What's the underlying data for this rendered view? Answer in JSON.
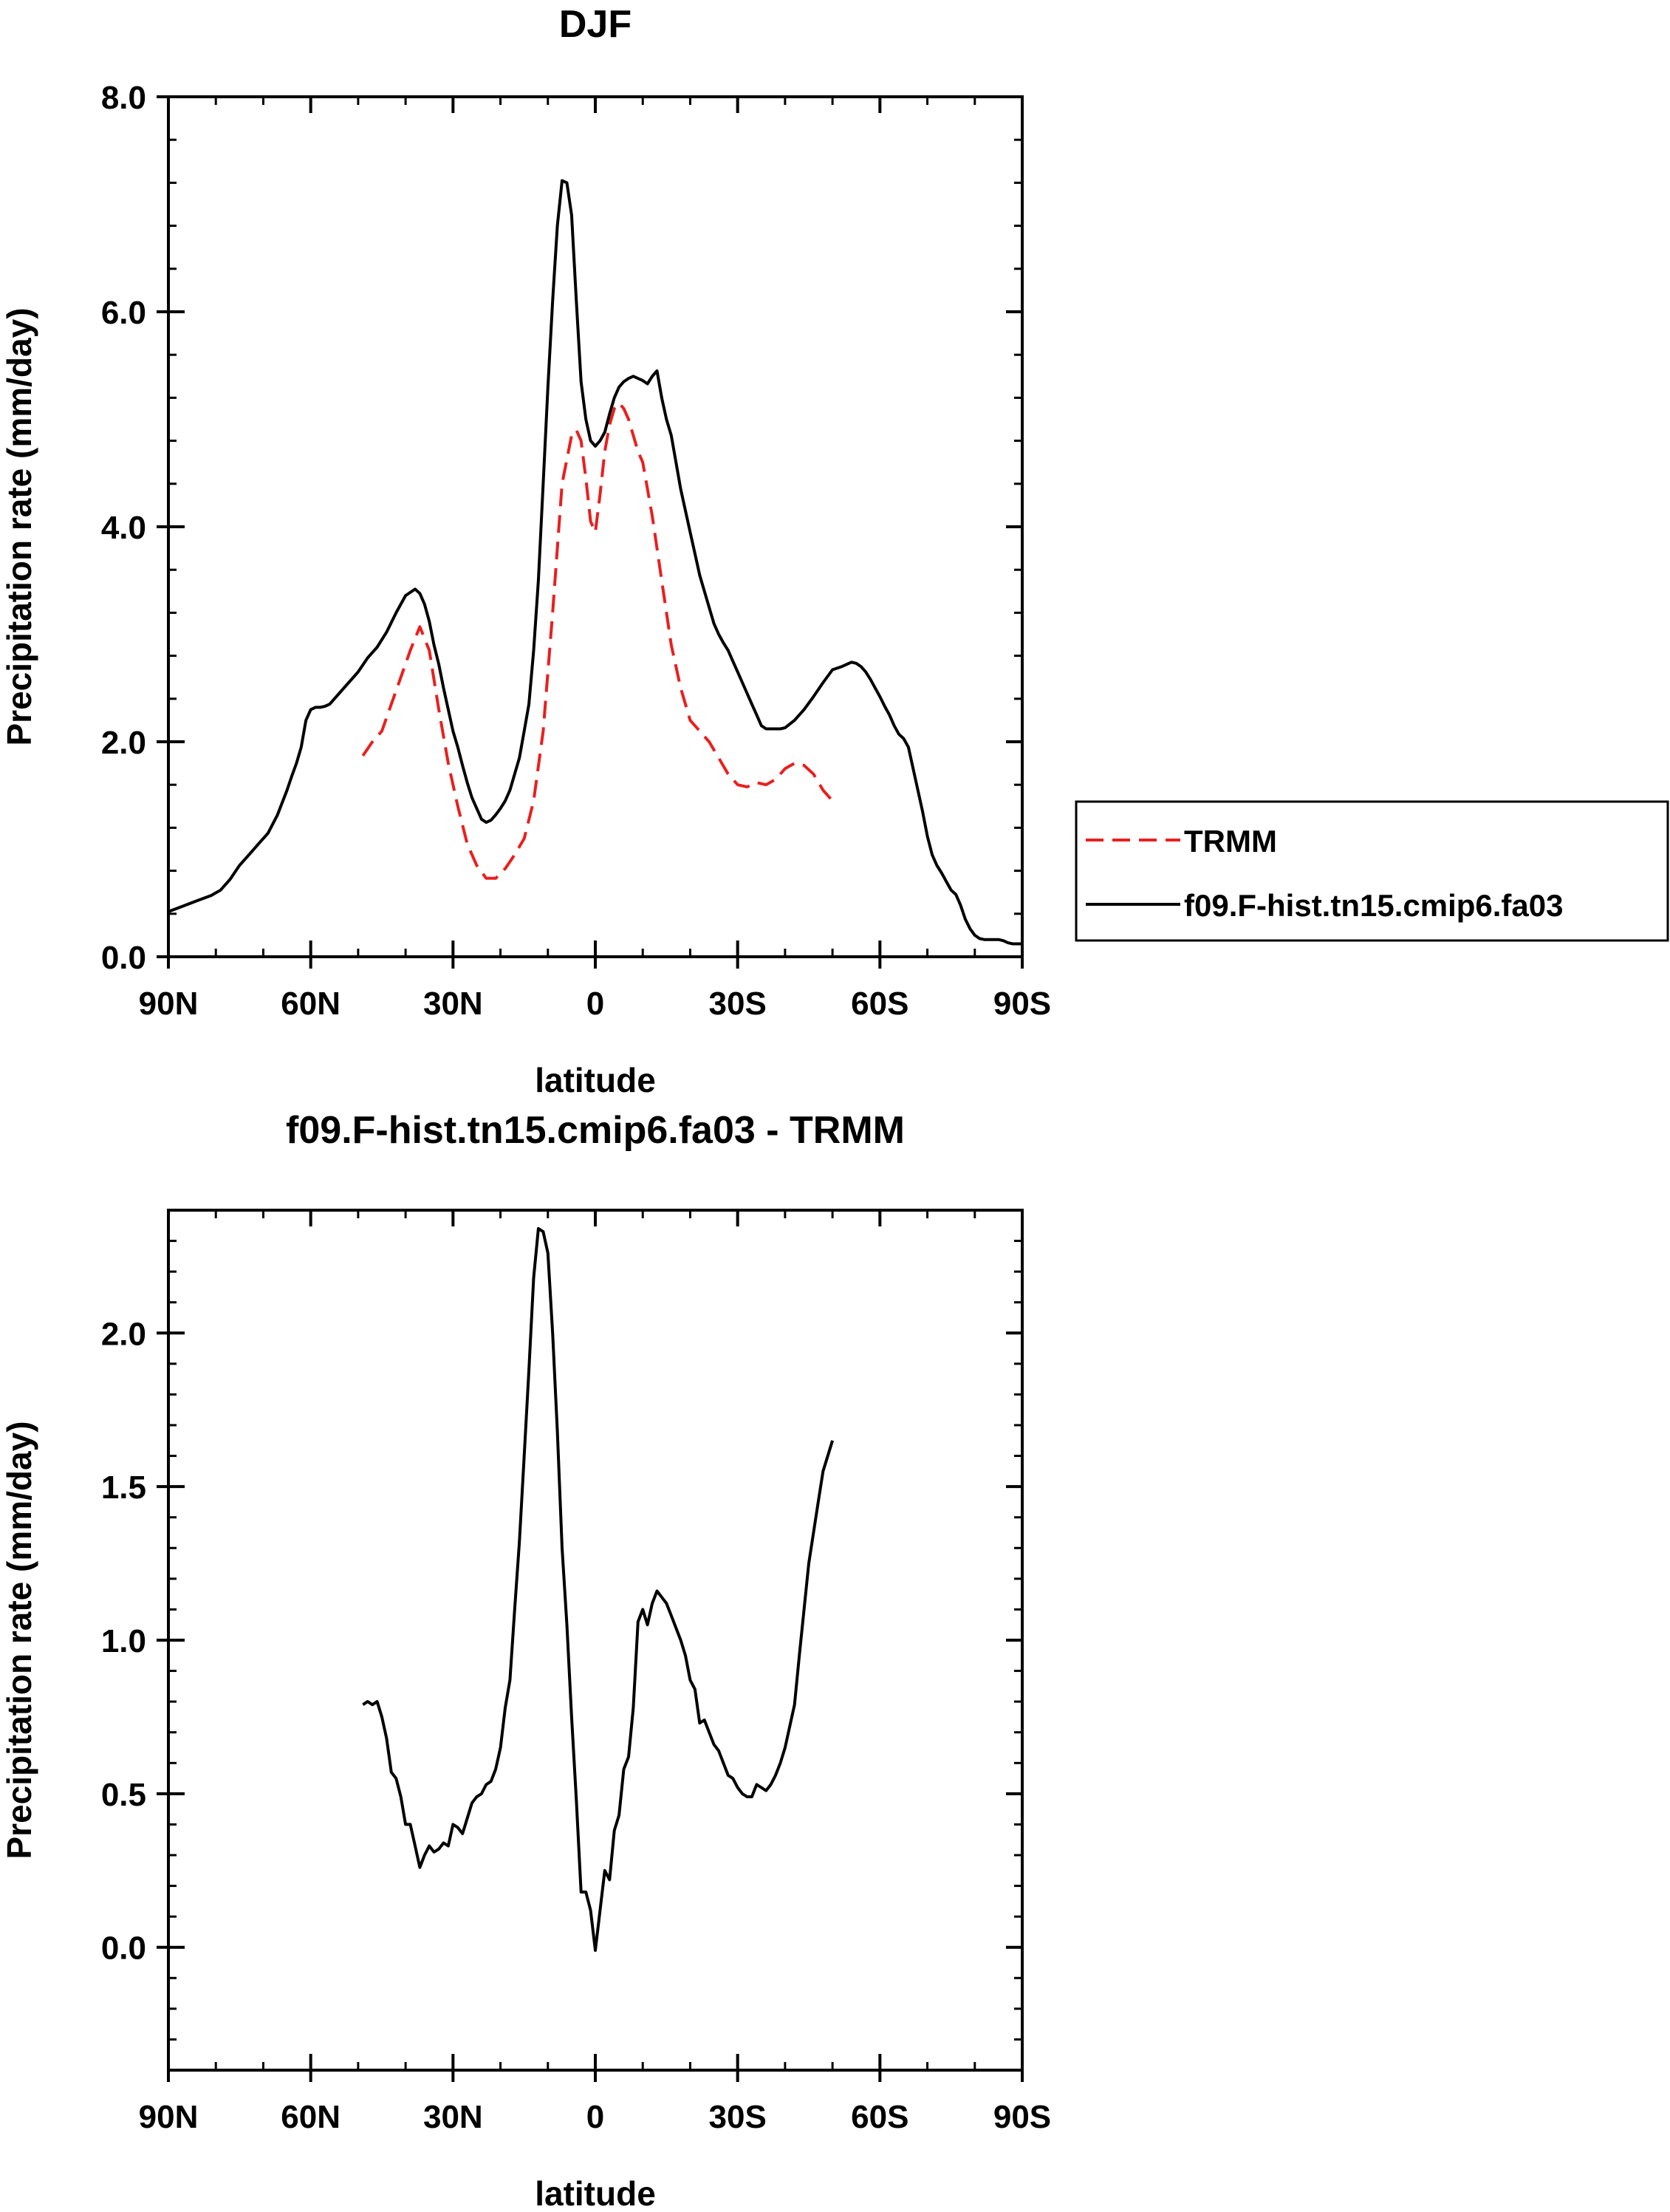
{
  "chart_data": [
    {
      "type": "line",
      "title": "DJF",
      "xlabel": "latitude",
      "ylabel": "Precipitation rate (mm/day)",
      "xlim": [
        -90,
        90
      ],
      "ylim": [
        0,
        8
      ],
      "x_ticks": [
        -90,
        -60,
        -30,
        0,
        30,
        60,
        90
      ],
      "x_tick_labels": [
        "90N",
        "60N",
        "30N",
        "0",
        "30S",
        "60S",
        "90S"
      ],
      "y_ticks": [
        0,
        2,
        4,
        6,
        8
      ],
      "y_tick_labels": [
        "0.0",
        "2.0",
        "4.0",
        "6.0",
        "8.0"
      ],
      "grid": false,
      "legend_position": "right",
      "series": [
        {
          "name": "TRMM",
          "color": "#e8201f",
          "dash": "dashed",
          "x": [
            -49,
            -47,
            -45,
            -43,
            -41,
            -39,
            -37,
            -35,
            -33,
            -31,
            -29,
            -27,
            -25,
            -23,
            -21,
            -19,
            -17,
            -15,
            -13,
            -11,
            -9,
            -7,
            -5,
            -4,
            -3,
            -2,
            -1,
            0,
            1,
            2,
            3,
            4,
            5,
            6,
            7,
            8,
            9,
            10,
            12,
            14,
            16,
            18,
            20,
            22,
            24,
            26,
            28,
            30,
            32,
            34,
            36,
            38,
            40,
            42,
            44,
            46,
            48,
            50
          ],
          "y": [
            1.87,
            2.0,
            2.1,
            2.35,
            2.6,
            2.85,
            3.07,
            2.85,
            2.3,
            1.8,
            1.4,
            1.05,
            0.85,
            0.73,
            0.73,
            0.82,
            0.95,
            1.1,
            1.45,
            2.1,
            3.2,
            4.4,
            4.85,
            4.9,
            4.8,
            4.45,
            4.05,
            3.95,
            4.3,
            4.7,
            4.95,
            5.1,
            5.15,
            5.1,
            5.0,
            4.85,
            4.7,
            4.6,
            4.1,
            3.5,
            2.9,
            2.5,
            2.2,
            2.1,
            2.0,
            1.85,
            1.7,
            1.6,
            1.58,
            1.62,
            1.6,
            1.65,
            1.75,
            1.8,
            1.78,
            1.7,
            1.55,
            1.45
          ]
        },
        {
          "name": "f09.F-hist.tn15.cmip6.fa03",
          "color": "#000000",
          "dash": "solid",
          "x": [
            -90,
            -87,
            -84,
            -81,
            -79,
            -77,
            -75,
            -73,
            -71,
            -69,
            -67,
            -65,
            -64,
            -63,
            -62,
            -61,
            -60,
            -59,
            -58,
            -57,
            -56,
            -54,
            -52,
            -50,
            -48,
            -46,
            -44,
            -42,
            -40,
            -38,
            -37,
            -36,
            -35,
            -34,
            -33,
            -32,
            -31,
            -30,
            -29,
            -28,
            -27,
            -26,
            -25,
            -24,
            -23,
            -22,
            -21,
            -20,
            -19,
            -18,
            -17,
            -16,
            -15,
            -14,
            -13,
            -12,
            -11,
            -10,
            -9,
            -8,
            -7,
            -6,
            -5,
            -4,
            -3,
            -2,
            -1,
            0,
            1,
            2,
            3,
            4,
            5,
            6,
            7,
            8,
            9,
            10,
            11,
            12,
            13,
            14,
            15,
            16,
            17,
            18,
            19,
            20,
            21,
            22,
            23,
            24,
            25,
            26,
            27,
            28,
            29,
            30,
            31,
            32,
            33,
            34,
            35,
            36,
            37,
            38,
            39,
            40,
            42,
            44,
            46,
            48,
            50,
            52,
            53,
            54,
            55,
            56,
            57,
            58,
            59,
            60,
            61,
            62,
            63,
            64,
            65,
            66,
            67,
            68,
            69,
            70,
            71,
            72,
            73,
            74,
            75,
            76,
            77,
            78,
            79,
            80,
            81,
            82,
            83,
            84,
            85,
            86,
            87,
            88,
            89,
            90
          ],
          "y": [
            0.42,
            0.47,
            0.52,
            0.57,
            0.62,
            0.72,
            0.85,
            0.95,
            1.05,
            1.15,
            1.32,
            1.55,
            1.68,
            1.8,
            1.95,
            2.2,
            2.3,
            2.32,
            2.32,
            2.33,
            2.35,
            2.45,
            2.55,
            2.65,
            2.78,
            2.88,
            3.02,
            3.2,
            3.36,
            3.42,
            3.38,
            3.28,
            3.12,
            2.9,
            2.72,
            2.5,
            2.3,
            2.1,
            1.95,
            1.78,
            1.62,
            1.48,
            1.38,
            1.28,
            1.25,
            1.27,
            1.32,
            1.38,
            1.45,
            1.55,
            1.7,
            1.85,
            2.1,
            2.35,
            2.85,
            3.5,
            4.4,
            5.3,
            6.1,
            6.8,
            7.22,
            7.2,
            6.9,
            6.1,
            5.35,
            5.0,
            4.8,
            4.75,
            4.8,
            4.88,
            5.05,
            5.2,
            5.3,
            5.35,
            5.38,
            5.4,
            5.38,
            5.36,
            5.33,
            5.4,
            5.45,
            5.2,
            5.0,
            4.85,
            4.6,
            4.35,
            4.15,
            3.95,
            3.75,
            3.55,
            3.4,
            3.25,
            3.1,
            3.0,
            2.92,
            2.85,
            2.75,
            2.65,
            2.55,
            2.45,
            2.35,
            2.25,
            2.15,
            2.12,
            2.12,
            2.12,
            2.12,
            2.13,
            2.2,
            2.3,
            2.42,
            2.55,
            2.67,
            2.7,
            2.72,
            2.74,
            2.73,
            2.7,
            2.65,
            2.58,
            2.5,
            2.42,
            2.33,
            2.25,
            2.15,
            2.07,
            2.03,
            1.95,
            1.75,
            1.55,
            1.35,
            1.12,
            0.95,
            0.85,
            0.78,
            0.7,
            0.62,
            0.58,
            0.48,
            0.35,
            0.26,
            0.2,
            0.17,
            0.16,
            0.16,
            0.16,
            0.16,
            0.15,
            0.13,
            0.12,
            0.12,
            0.12
          ]
        }
      ]
    },
    {
      "type": "line",
      "title": "f09.F-hist.tn15.cmip6.fa03 - TRMM",
      "xlabel": "latitude",
      "ylabel": "Precipitation rate (mm/day)",
      "xlim": [
        -90,
        90
      ],
      "ylim": [
        -0.4,
        2.4
      ],
      "x_ticks": [
        -90,
        -60,
        -30,
        0,
        30,
        60,
        90
      ],
      "x_tick_labels": [
        "90N",
        "60N",
        "30N",
        "0",
        "30S",
        "60S",
        "90S"
      ],
      "y_ticks": [
        0.0,
        0.5,
        1.0,
        1.5,
        2.0
      ],
      "y_tick_labels": [
        "0.0",
        "0.5",
        "1.0",
        "1.5",
        "2.0"
      ],
      "grid": false,
      "series": [
        {
          "color": "#000000",
          "dash": "solid",
          "x": [
            -49,
            -48,
            -47,
            -46,
            -45,
            -44,
            -43,
            -42,
            -41,
            -40,
            -39,
            -38,
            -37,
            -36,
            -35,
            -34,
            -33,
            -32,
            -31,
            -30,
            -29,
            -28,
            -27,
            -26,
            -25,
            -24,
            -23,
            -22,
            -21,
            -20,
            -19,
            -18,
            -17,
            -16,
            -15,
            -14,
            -13,
            -12,
            -11,
            -10,
            -9,
            -8,
            -7,
            -6,
            -5,
            -4,
            -3,
            -2,
            -1,
            0,
            1,
            2,
            3,
            4,
            5,
            6,
            7,
            8,
            9,
            10,
            11,
            12,
            13,
            14,
            15,
            16,
            17,
            18,
            19,
            20,
            21,
            22,
            23,
            24,
            25,
            26,
            27,
            28,
            29,
            30,
            31,
            32,
            33,
            34,
            35,
            36,
            37,
            38,
            39,
            40,
            41,
            42,
            43,
            44,
            45,
            46,
            47,
            48,
            49,
            50
          ],
          "y": [
            0.79,
            0.8,
            0.79,
            0.8,
            0.75,
            0.68,
            0.57,
            0.55,
            0.49,
            0.4,
            0.4,
            0.33,
            0.26,
            0.3,
            0.33,
            0.31,
            0.32,
            0.34,
            0.33,
            0.4,
            0.39,
            0.37,
            0.42,
            0.47,
            0.49,
            0.5,
            0.53,
            0.54,
            0.58,
            0.65,
            0.78,
            0.87,
            1.1,
            1.32,
            1.6,
            1.88,
            2.18,
            2.34,
            2.33,
            2.26,
            2.0,
            1.68,
            1.3,
            1.05,
            0.75,
            0.48,
            0.18,
            0.18,
            0.12,
            -0.01,
            0.12,
            0.25,
            0.22,
            0.38,
            0.43,
            0.58,
            0.62,
            0.78,
            1.06,
            1.1,
            1.05,
            1.12,
            1.16,
            1.14,
            1.12,
            1.08,
            1.04,
            1.0,
            0.95,
            0.87,
            0.84,
            0.73,
            0.74,
            0.7,
            0.66,
            0.64,
            0.6,
            0.56,
            0.55,
            0.52,
            0.5,
            0.49,
            0.49,
            0.53,
            0.52,
            0.51,
            0.53,
            0.56,
            0.6,
            0.65,
            0.72,
            0.79,
            0.95,
            1.1,
            1.25,
            1.35,
            1.45,
            1.55,
            1.6,
            1.65
          ]
        }
      ]
    }
  ]
}
